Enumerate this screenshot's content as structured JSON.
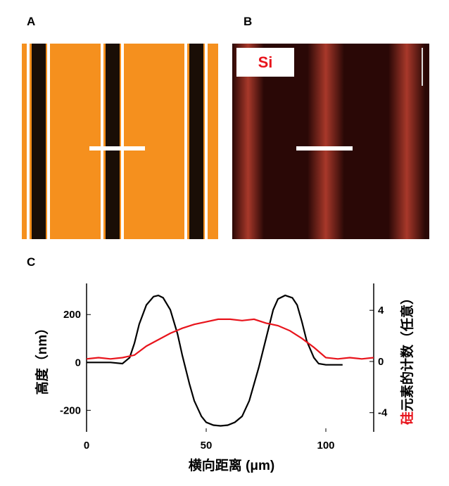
{
  "panel_labels": [
    "A",
    "B",
    "C"
  ],
  "element_label": "Si",
  "chart_data": {
    "type": "line",
    "xlabel": "横向距离 (μm)",
    "ylabel": "高度（nm）",
    "y2label_highlight": "硅",
    "y2label": "元素的计数（任意）",
    "xlim": [
      0,
      120
    ],
    "xticks": [
      0,
      50,
      100
    ],
    "ylim": [
      -290,
      330
    ],
    "yticks": [
      200,
      0,
      -200
    ],
    "y2lim": [
      -5.5,
      6.1
    ],
    "y2ticks": [
      4,
      0,
      -4
    ],
    "series": [
      {
        "color": "#000000",
        "x": [
          0,
          10,
          15,
          18,
          20,
          22,
          25,
          28,
          30,
          32,
          35,
          38,
          40,
          43,
          45,
          48,
          50,
          53,
          56,
          59,
          62,
          65,
          68,
          70,
          72,
          75,
          78,
          80,
          83,
          86,
          88,
          90,
          92,
          95,
          97,
          100,
          107
        ],
        "values": [
          0,
          0,
          -5,
          20,
          80,
          160,
          240,
          275,
          280,
          270,
          220,
          120,
          30,
          -90,
          -160,
          -225,
          -250,
          -262,
          -265,
          -262,
          -250,
          -225,
          -160,
          -90,
          -20,
          100,
          220,
          265,
          280,
          270,
          240,
          170,
          90,
          20,
          -5,
          -10,
          -10
        ]
      },
      {
        "color": "#e8141c",
        "axis": "y2",
        "x": [
          0,
          5,
          10,
          15,
          20,
          25,
          30,
          35,
          40,
          45,
          50,
          55,
          60,
          65,
          70,
          75,
          80,
          85,
          90,
          95,
          100,
          105,
          110,
          115,
          120
        ],
        "values": [
          0.2,
          0.3,
          0.2,
          0.3,
          0.5,
          1.2,
          1.7,
          2.2,
          2.6,
          2.9,
          3.1,
          3.3,
          3.3,
          3.2,
          3.3,
          3.0,
          2.8,
          2.4,
          1.8,
          1.1,
          0.3,
          0.2,
          0.3,
          0.2,
          0.3
        ]
      }
    ]
  }
}
